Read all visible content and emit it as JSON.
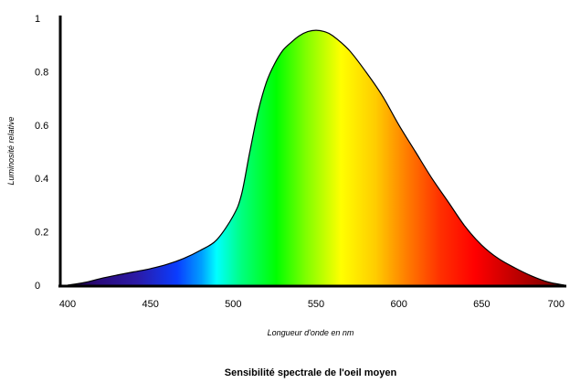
{
  "chart_data": {
    "type": "area",
    "title": "Sensibilité spectrale de l'oeil moyen",
    "xlabel": "Longueur d'onde en nm",
    "ylabel": "Luminosité relative",
    "xlim": [
      400,
      700
    ],
    "ylim": [
      0,
      1
    ],
    "x_ticks": [
      "400",
      "450",
      "500",
      "550",
      "600",
      "650",
      "700"
    ],
    "y_ticks": [
      "0",
      "0.2",
      "0.4",
      "0.6",
      "0.8",
      "1"
    ],
    "grid": false,
    "legend": "none",
    "series": [
      {
        "x": [
          400,
          410,
          420,
          430,
          440,
          450,
          460,
          470,
          480,
          490,
          500,
          505,
          510,
          515,
          520,
          525,
          530,
          535,
          540,
          545,
          550,
          555,
          560,
          570,
          580,
          590,
          600,
          610,
          620,
          630,
          640,
          650,
          660,
          670,
          680,
          690,
          700
        ],
        "y": [
          0.0,
          0.01,
          0.025,
          0.038,
          0.05,
          0.062,
          0.078,
          0.1,
          0.13,
          0.17,
          0.26,
          0.34,
          0.5,
          0.65,
          0.76,
          0.83,
          0.88,
          0.91,
          0.935,
          0.95,
          0.955,
          0.95,
          0.935,
          0.88,
          0.8,
          0.71,
          0.6,
          0.5,
          0.4,
          0.31,
          0.22,
          0.15,
          0.1,
          0.065,
          0.035,
          0.012,
          0.0
        ]
      }
    ]
  }
}
